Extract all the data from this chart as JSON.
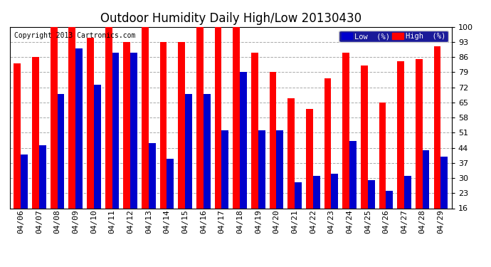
{
  "title": "Outdoor Humidity Daily High/Low 20130430",
  "copyright": "Copyright 2013 Cartronics.com",
  "background_color": "#ffffff",
  "plot_bg_color": "#ffffff",
  "grid_color": "#aaaaaa",
  "bar_width": 0.38,
  "dates": [
    "04/06",
    "04/07",
    "04/08",
    "04/09",
    "04/10",
    "04/11",
    "04/12",
    "04/13",
    "04/14",
    "04/15",
    "04/16",
    "04/17",
    "04/18",
    "04/19",
    "04/20",
    "04/21",
    "04/22",
    "04/23",
    "04/24",
    "04/25",
    "04/26",
    "04/27",
    "04/28",
    "04/29"
  ],
  "high_values": [
    83,
    86,
    100,
    100,
    95,
    100,
    93,
    100,
    93,
    93,
    100,
    100,
    100,
    88,
    79,
    67,
    62,
    76,
    88,
    82,
    65,
    84,
    85,
    91
  ],
  "low_values": [
    41,
    45,
    69,
    90,
    73,
    88,
    88,
    46,
    39,
    69,
    69,
    52,
    79,
    52,
    52,
    28,
    31,
    32,
    47,
    29,
    24,
    31,
    43,
    40
  ],
  "high_color": "#ff0000",
  "low_color": "#0000cc",
  "ymin": 16,
  "ymax": 100,
  "yticks": [
    16,
    23,
    30,
    37,
    44,
    51,
    58,
    65,
    72,
    79,
    86,
    93,
    100
  ],
  "title_fontsize": 12,
  "tick_fontsize": 8,
  "copyright_fontsize": 7,
  "legend_low_label": "Low  (%)",
  "legend_high_label": "High  (%)"
}
